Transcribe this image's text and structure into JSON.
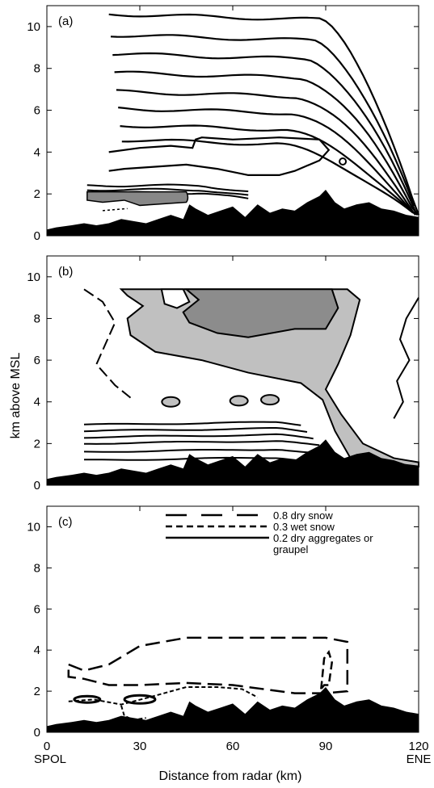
{
  "chart_data": {
    "type": "contour",
    "ylabel": "km above MSL",
    "xlabel": "Distance from radar (km)",
    "xlim": [
      0,
      120
    ],
    "ylim": [
      0,
      11
    ],
    "x_ticks": [
      "0",
      "30",
      "60",
      "90",
      "120"
    ],
    "y_ticks": [
      "0",
      "2",
      "4",
      "6",
      "8",
      "10"
    ],
    "x_end_labels": {
      "left": "SPOL",
      "right": "ENE"
    },
    "panels": [
      {
        "tag": "(a)",
        "contours_y": [
          10.6,
          9.6,
          8.7,
          7.8,
          6.9,
          6.1,
          5.3,
          4.6
        ],
        "shaded_region": {
          "x": [
            13,
            45
          ],
          "y": [
            1.5,
            2.1
          ],
          "fill": "#888888"
        }
      },
      {
        "tag": "(b)",
        "light_region_fill": "#c0c0c0",
        "dark_region_fill": "#8c8c8c",
        "stratified_contours_y": [
          1.2,
          1.6,
          2.0,
          2.3,
          2.6,
          2.9
        ]
      },
      {
        "tag": "(c)",
        "legend": [
          {
            "style": "long-dash",
            "label": "0.8 dry snow"
          },
          {
            "style": "short-dash",
            "label": "0.3 wet snow"
          },
          {
            "style": "solid",
            "label": "0.2 dry aggregates or"
          },
          {
            "style": "none",
            "label": "graupel"
          }
        ],
        "dry_snow_contour": {
          "x": [
            7,
            12,
            20,
            30,
            45,
            60,
            80,
            90,
            97
          ],
          "y_top": [
            3.3,
            3.0,
            3.3,
            4.2,
            4.6,
            4.6,
            4.6,
            4.6,
            4.4
          ],
          "y_bottom": [
            2.7,
            2.6,
            2.3,
            2.3,
            2.4,
            2.3,
            1.9,
            1.9,
            2.0
          ]
        }
      }
    ],
    "terrain": {
      "x": [
        0,
        3,
        8,
        12,
        16,
        20,
        24,
        28,
        32,
        36,
        40,
        44,
        46,
        48,
        52,
        56,
        60,
        64,
        68,
        72,
        76,
        80,
        84,
        88,
        90,
        93,
        96,
        100,
        104,
        108,
        112,
        116,
        120
      ],
      "y": [
        0.3,
        0.4,
        0.5,
        0.6,
        0.5,
        0.6,
        0.8,
        0.7,
        0.6,
        0.8,
        1.0,
        0.8,
        1.5,
        1.3,
        1.0,
        1.2,
        1.4,
        0.9,
        1.5,
        1.1,
        1.3,
        1.2,
        1.6,
        1.9,
        2.2,
        1.6,
        1.3,
        1.5,
        1.6,
        1.3,
        1.2,
        1.0,
        0.9
      ]
    }
  }
}
